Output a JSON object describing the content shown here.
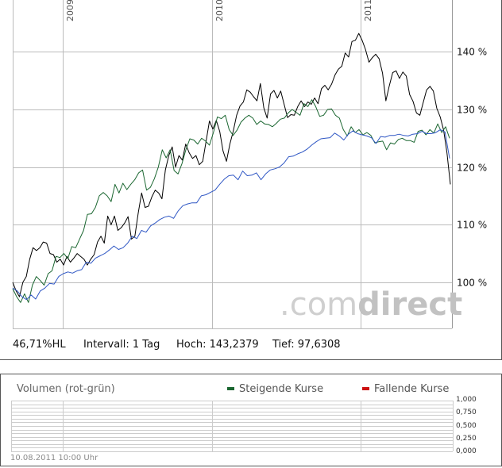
{
  "chart_data": {
    "type": "line",
    "x_labels": [
      "2009",
      "2010",
      "2011"
    ],
    "y_ticks": [
      "100 %",
      "110 %",
      "120 %",
      "130 %",
      "140 %"
    ],
    "ylim": [
      92,
      149
    ],
    "grid": true,
    "watermark": {
      "part1": ".com",
      "part2": "direct"
    },
    "series": [
      {
        "color": "#000000",
        "values": [
          100,
          98.5,
          97.5,
          100,
          101,
          104,
          106,
          105.5,
          106,
          107,
          106.8,
          105,
          104.8,
          103.5,
          104,
          103,
          104.5,
          103.5,
          104.2,
          105,
          104.5,
          104,
          103,
          104,
          104.8,
          107,
          108,
          106.8,
          111.5,
          110,
          111.5,
          109,
          109.5,
          110.3,
          111.4,
          107.5,
          108,
          112,
          115.5,
          113,
          113.2,
          114.8,
          116,
          115.5,
          114.5,
          119.5,
          122,
          123.5,
          120,
          122,
          121.2,
          124,
          122.5,
          121.5,
          122,
          120.4,
          121,
          124.5,
          128,
          126.6,
          128.1,
          126.2,
          122.8,
          121,
          124,
          126.2,
          129,
          130.6,
          131.3,
          133.4,
          133,
          132.2,
          131.5,
          134.5,
          130.3,
          128.5,
          132.7,
          133.3,
          132,
          133.2,
          130.9,
          128.6,
          129.1,
          129,
          130.5,
          131.5,
          130.5,
          131.3,
          130.9,
          132,
          131,
          133.6,
          134.2,
          133.4,
          134.4,
          136,
          137,
          137.5,
          139.8,
          139.1,
          141.8,
          142,
          143.2,
          142,
          140.4,
          138.2,
          139,
          139.6,
          138.8,
          136.3,
          131.5,
          134.1,
          136.4,
          136.7,
          135.4,
          136.5,
          135.8,
          132.6,
          131.4,
          129.4,
          129,
          131.2,
          133.4,
          134,
          133.2,
          130.2,
          128.7,
          126.4,
          122.5,
          117
        ]
      },
      {
        "color": "#1a6630",
        "values": [
          98.9,
          97.5,
          96.5,
          98,
          96.5,
          99.5,
          101,
          100.3,
          99.5,
          101.5,
          102,
          104.5,
          104.3,
          105,
          104.1,
          106.2,
          106,
          107.5,
          109,
          111.8,
          111.9,
          113,
          115,
          115.6,
          115,
          114,
          117,
          115.5,
          117.2,
          116.1,
          117,
          117.8,
          119,
          119.5,
          116,
          116.5,
          118,
          120,
          123,
          121.6,
          123,
          119.4,
          118.8,
          120.6,
          123,
          124.9,
          124.7,
          124,
          125,
          124.5,
          123.8,
          126,
          128.7,
          128.4,
          129,
          126.5,
          125.5,
          126.4,
          127.8,
          128.5,
          129,
          128.5,
          127.4,
          128,
          127.5,
          127.4,
          127,
          127.6,
          128.3,
          128.5,
          129.4,
          130,
          129.5,
          129,
          131,
          130.5,
          131.7,
          130.5,
          128.8,
          129,
          130,
          130.1,
          129,
          128.5,
          126.5,
          125.4,
          127,
          126,
          126.5,
          125.6,
          126,
          125.5,
          124.2,
          124.4,
          124.5,
          123,
          124.2,
          124,
          124.8,
          125,
          124.6,
          124.6,
          124.3,
          126.2,
          126.4,
          125.6,
          126.5,
          125.9,
          127.5,
          126,
          127,
          125
        ]
      },
      {
        "color": "#2e56c4",
        "values": [
          99,
          98.5,
          97.5,
          97,
          97.8,
          97.1,
          98.5,
          99,
          99.8,
          99.7,
          101,
          101.5,
          101.8,
          101.6,
          102,
          102.2,
          103.5,
          103.3,
          104.2,
          104.6,
          105,
          105.6,
          106.3,
          105.7,
          106,
          106.8,
          108,
          107.6,
          109,
          108.7,
          109.8,
          110.3,
          110.9,
          111.3,
          111.5,
          111.1,
          112.4,
          113.3,
          113.6,
          113.8,
          113.8,
          115,
          115.2,
          115.6,
          116,
          117,
          117.9,
          118.5,
          118.6,
          117.8,
          119.3,
          118.5,
          118.6,
          119,
          117.8,
          118.8,
          119.5,
          119.7,
          120,
          120.7,
          121.8,
          121.9,
          122.3,
          122.6,
          123.1,
          123.8,
          124.4,
          124.9,
          125,
          125.1,
          125.9,
          125.4,
          124.7,
          125.7,
          126.3,
          125.8,
          125.6,
          125.4,
          125.1,
          124.1,
          125.3,
          125.2,
          125.5,
          125.5,
          125.7,
          125.5,
          125.4,
          125.7,
          125.8,
          126.2,
          125.8,
          125.8,
          126,
          126.5,
          126.1,
          121.5
        ]
      }
    ]
  },
  "info": {
    "performance": "46,71%HL",
    "interval": "Intervall: 1 Tag",
    "high": "Hoch: 143,2379",
    "low": "Tief: 97,6308"
  },
  "volume": {
    "title": "Volumen (rot-grün)",
    "legend_rising": "Steigende Kurse",
    "legend_falling": "Fallende Kurse",
    "rising_color": "#1a6630",
    "falling_color": "#cc1111",
    "ticks": [
      "1,000",
      "0,750",
      "0,500",
      "0,250",
      "0,000"
    ],
    "timestamp": "10.08.2011 10:00 Uhr"
  }
}
